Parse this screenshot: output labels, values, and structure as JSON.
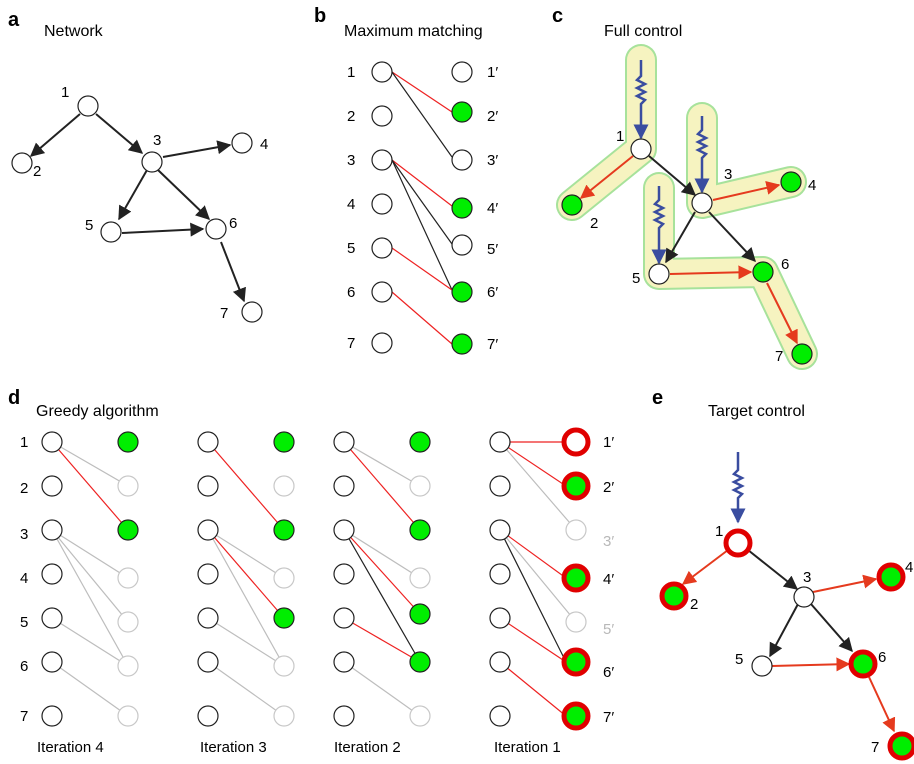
{
  "panels": {
    "a": {
      "letter": "a",
      "title": "Network"
    },
    "b": {
      "letter": "b",
      "title": "Maximum matching"
    },
    "c": {
      "letter": "c",
      "title": "Full control"
    },
    "d": {
      "letter": "d",
      "title": "Greedy algorithm"
    },
    "e": {
      "letter": "e",
      "title": "Target control"
    }
  },
  "node_labels": [
    "1",
    "2",
    "3",
    "4",
    "5",
    "6",
    "7"
  ],
  "primed_labels": [
    "1′",
    "2′",
    "3′",
    "4′",
    "5′",
    "6′",
    "7′"
  ],
  "iterations": [
    "Iteration 4",
    "Iteration 3",
    "Iteration 2",
    "Iteration 1"
  ],
  "colors": {
    "matched_node": "#00ee00",
    "matched_edge": "#ee2222",
    "control_edge": "#e53a1e",
    "input_signal": "#3a4da0",
    "stem_highlight": "#f6f3c0",
    "stem_outline": "#a7e29b",
    "target_ring": "#e00000",
    "inactive": "#bdbdbd"
  }
}
